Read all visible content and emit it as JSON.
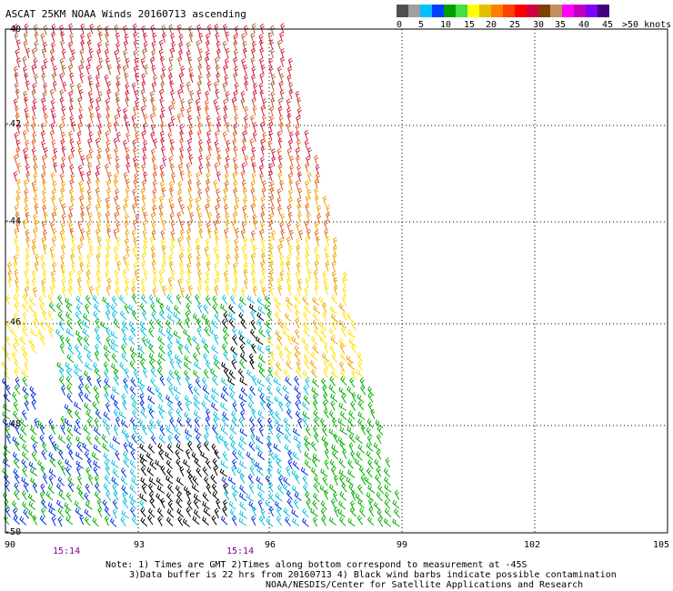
{
  "title": "ASCAT 25KM NOAA Winds 20160713 ascending",
  "colorbar": {
    "colors": [
      "#505050",
      "#a0a0a0",
      "#00c0ff",
      "#0040ff",
      "#00a000",
      "#40e040",
      "#ffff00",
      "#e0c000",
      "#ff8000",
      "#ff4000",
      "#ff0000",
      "#d00040",
      "#804000",
      "#c09060",
      "#ff00ff",
      "#c000c0",
      "#8000ff",
      "#400080"
    ],
    "labels": [
      "0",
      "5",
      "10",
      "15",
      "20",
      "25",
      "30",
      "35",
      "40",
      "45",
      ">50 knots"
    ]
  },
  "axes": {
    "lat_labels": [
      "-40",
      "-42",
      "-44",
      "-46",
      "-48",
      "-50"
    ],
    "lon_labels": [
      "90",
      "93",
      "96",
      "99",
      "102",
      "105"
    ]
  },
  "times": [
    "15:14",
    "15:14"
  ],
  "notes": [
    "Note: 1) Times are GMT 2)Times along bottom correspond to measurement at -45S",
    "3)Data buffer is 22 hrs from 20160713 4) Black wind barbs indicate possible contamination",
    "NOAA/NESDIS/Center for Satellite Applications and Research"
  ],
  "swath_color_bands": {
    "description_colors": [
      "#b06030",
      "#d02040",
      "#e06020",
      "#f0a000",
      "#ffe000",
      "#00b000",
      "#00c0e0",
      "#0030e0",
      "#000000"
    ]
  }
}
